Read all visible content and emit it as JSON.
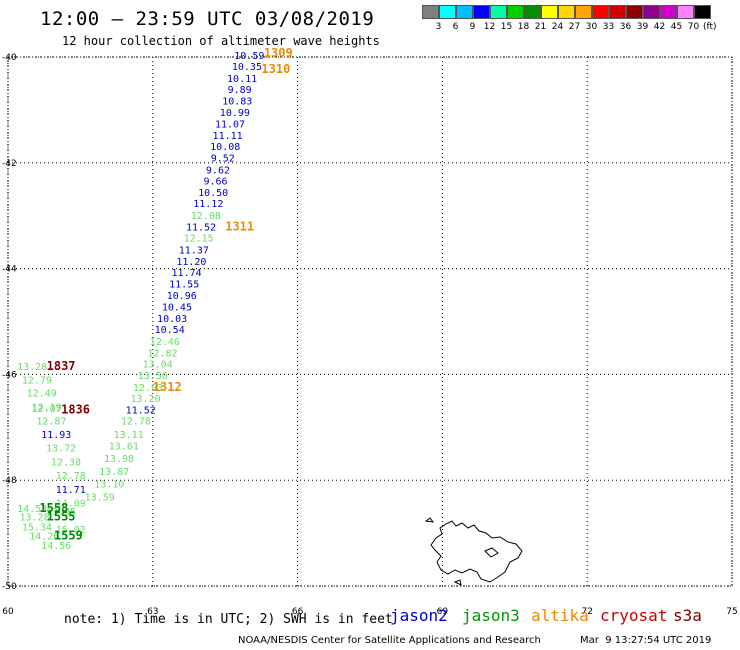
{
  "header": {
    "title": "12:00 — 23:59 UTC 03/08/2019",
    "subtitle": "12 hour collection of altimeter wave heights"
  },
  "legend": {
    "colors": [
      "#808080",
      "#00ffff",
      "#00bfff",
      "#0000ff",
      "#00ffa0",
      "#00d000",
      "#009000",
      "#ffff00",
      "#ffd700",
      "#ffa500",
      "#ff0000",
      "#d00000",
      "#900000",
      "#900090",
      "#d000d0",
      "#ff80ff",
      "#000000"
    ],
    "ticks": [
      "3",
      "6",
      "9",
      "12",
      "15",
      "18",
      "21",
      "24",
      "27",
      "30",
      "33",
      "36",
      "39",
      "42",
      "45",
      "70"
    ],
    "unit": "(ft)"
  },
  "map": {
    "lat_labels": [
      "-40",
      "-42",
      "-44",
      "-46",
      "-48",
      "-50"
    ],
    "lon_labels": [
      "60",
      "63",
      "66",
      "69",
      "72",
      "75"
    ],
    "lat_range": [
      -50,
      -40
    ],
    "lon_range": [
      60,
      75
    ],
    "grid": "dotted"
  },
  "observations": [
    {
      "text": "10.59",
      "lon": 65.0,
      "lat": -40.04,
      "color": "#0000cc"
    },
    {
      "text": "10.35",
      "lon": 64.95,
      "lat": -40.25,
      "color": "#0000cc"
    },
    {
      "text": "10.11",
      "lon": 64.85,
      "lat": -40.47,
      "color": "#0000cc"
    },
    {
      "text": "9.89",
      "lon": 64.8,
      "lat": -40.68,
      "color": "#0000cc"
    },
    {
      "text": "10.83",
      "lon": 64.75,
      "lat": -40.9,
      "color": "#0000cc"
    },
    {
      "text": "10.99",
      "lon": 64.7,
      "lat": -41.12,
      "color": "#0000cc"
    },
    {
      "text": "11.07",
      "lon": 64.6,
      "lat": -41.33,
      "color": "#0000cc"
    },
    {
      "text": "11.11",
      "lon": 64.55,
      "lat": -41.55,
      "color": "#0000cc"
    },
    {
      "text": "10.08",
      "lon": 64.5,
      "lat": -41.76,
      "color": "#0000cc"
    },
    {
      "text": "9.52",
      "lon": 64.45,
      "lat": -41.98,
      "color": "#0000cc"
    },
    {
      "text": "9.62",
      "lon": 64.35,
      "lat": -42.2,
      "color": "#0000cc"
    },
    {
      "text": "9.66",
      "lon": 64.3,
      "lat": -42.41,
      "color": "#0000cc"
    },
    {
      "text": "10.50",
      "lon": 64.25,
      "lat": -42.63,
      "color": "#0000cc"
    },
    {
      "text": "11.12",
      "lon": 64.15,
      "lat": -42.84,
      "color": "#0000cc"
    },
    {
      "text": "12.08",
      "lon": 64.1,
      "lat": -43.06,
      "color": "#66dd66"
    },
    {
      "text": "11.52",
      "lon": 64.0,
      "lat": -43.28,
      "color": "#0000cc"
    },
    {
      "text": "12.15",
      "lon": 63.95,
      "lat": -43.49,
      "color": "#66dd66"
    },
    {
      "text": "11.37",
      "lon": 63.85,
      "lat": -43.71,
      "color": "#0000cc"
    },
    {
      "text": "11.20",
      "lon": 63.8,
      "lat": -43.93,
      "color": "#0000cc"
    },
    {
      "text": "11.74",
      "lon": 63.7,
      "lat": -44.14,
      "color": "#0000cc"
    },
    {
      "text": "11.55",
      "lon": 63.65,
      "lat": -44.36,
      "color": "#0000cc"
    },
    {
      "text": "10.96",
      "lon": 63.6,
      "lat": -44.57,
      "color": "#0000cc"
    },
    {
      "text": "10.45",
      "lon": 63.5,
      "lat": -44.79,
      "color": "#0000cc"
    },
    {
      "text": "10.03",
      "lon": 63.4,
      "lat": -45.01,
      "color": "#0000cc"
    },
    {
      "text": "10.54",
      "lon": 63.35,
      "lat": -45.22,
      "color": "#0000cc"
    },
    {
      "text": "12.46",
      "lon": 63.25,
      "lat": -45.44,
      "color": "#66dd66"
    },
    {
      "text": "12.82",
      "lon": 63.2,
      "lat": -45.66,
      "color": "#66dd66"
    },
    {
      "text": "13.04",
      "lon": 63.1,
      "lat": -45.87,
      "color": "#66dd66"
    },
    {
      "text": "13.50",
      "lon": 63.0,
      "lat": -46.09,
      "color": "#66dd66"
    },
    {
      "text": "12.93",
      "lon": 62.9,
      "lat": -46.31,
      "color": "#66dd66"
    },
    {
      "text": "13.20",
      "lon": 62.85,
      "lat": -46.52,
      "color": "#66dd66"
    },
    {
      "text": "11.52",
      "lon": 62.75,
      "lat": -46.74,
      "color": "#0000cc"
    },
    {
      "text": "12.78",
      "lon": 62.65,
      "lat": -46.95,
      "color": "#66dd66"
    },
    {
      "text": "13.11",
      "lon": 62.5,
      "lat": -47.2,
      "color": "#66dd66"
    },
    {
      "text": "13.61",
      "lon": 62.4,
      "lat": -47.42,
      "color": "#66dd66"
    },
    {
      "text": "13.98",
      "lon": 62.3,
      "lat": -47.66,
      "color": "#66dd66"
    },
    {
      "text": "13.87",
      "lon": 62.2,
      "lat": -47.9,
      "color": "#66dd66"
    },
    {
      "text": "13.10",
      "lon": 62.1,
      "lat": -48.14,
      "color": "#66dd66"
    },
    {
      "text": "13.59",
      "lon": 61.9,
      "lat": -48.38,
      "color": "#66dd66"
    },
    {
      "text": "13.28",
      "lon": 60.5,
      "lat": -45.92,
      "color": "#66dd66"
    },
    {
      "text": "12.79",
      "lon": 60.6,
      "lat": -46.17,
      "color": "#66dd66"
    },
    {
      "text": "12.49",
      "lon": 60.7,
      "lat": -46.42,
      "color": "#66dd66"
    },
    {
      "text": "12.19",
      "lon": 60.8,
      "lat": -46.68,
      "color": "#66dd66"
    },
    {
      "text": "12.07",
      "lon": 60.8,
      "lat": -46.71,
      "color": "#66dd66"
    },
    {
      "text": "12.87",
      "lon": 60.9,
      "lat": -46.95,
      "color": "#66dd66"
    },
    {
      "text": "11.93",
      "lon": 61.0,
      "lat": -47.2,
      "color": "#0000cc"
    },
    {
      "text": "13.72",
      "lon": 61.1,
      "lat": -47.46,
      "color": "#66dd66"
    },
    {
      "text": "12.38",
      "lon": 61.2,
      "lat": -47.72,
      "color": "#66dd66"
    },
    {
      "text": "12.78",
      "lon": 61.3,
      "lat": -47.98,
      "color": "#66dd66"
    },
    {
      "text": "11.71",
      "lon": 61.3,
      "lat": -48.24,
      "color": "#0000cc"
    },
    {
      "text": "14.53",
      "lon": 60.5,
      "lat": -48.6,
      "color": "#66dd66"
    },
    {
      "text": "13.28",
      "lon": 60.55,
      "lat": -48.76,
      "color": "#66dd66"
    },
    {
      "text": "14.09",
      "lon": 61.3,
      "lat": -48.5,
      "color": "#66dd66"
    },
    {
      "text": "13.95",
      "lon": 61.1,
      "lat": -48.66,
      "color": "#66dd66"
    },
    {
      "text": "15.34",
      "lon": 60.6,
      "lat": -48.95,
      "color": "#66dd66"
    },
    {
      "text": "15.02",
      "lon": 61.3,
      "lat": -49.0,
      "color": "#66dd66"
    },
    {
      "text": "14.26",
      "lon": 60.75,
      "lat": -49.12,
      "color": "#66dd66"
    },
    {
      "text": "14.56",
      "lon": 61.0,
      "lat": -49.3,
      "color": "#66dd66"
    }
  ],
  "passes": [
    {
      "text": "1309",
      "lon": 65.6,
      "lat": -40.0,
      "color": "#ee8800"
    },
    {
      "text": "1310",
      "lon": 65.55,
      "lat": -40.3,
      "color": "#ee8800"
    },
    {
      "text": "1311",
      "lon": 64.8,
      "lat": -43.28,
      "color": "#ee8800"
    },
    {
      "text": "1312",
      "lon": 63.3,
      "lat": -46.31,
      "color": "#ee8800"
    },
    {
      "text": "1837",
      "lon": 61.1,
      "lat": -45.92,
      "color": "#800000"
    },
    {
      "text": "1836",
      "lon": 61.4,
      "lat": -46.74,
      "color": "#800000"
    },
    {
      "text": "1558",
      "lon": 60.95,
      "lat": -48.6,
      "color": "#008800"
    },
    {
      "text": "1555",
      "lon": 61.1,
      "lat": -48.76,
      "color": "#008800"
    },
    {
      "text": "1559",
      "lon": 61.25,
      "lat": -49.12,
      "color": "#008800"
    }
  ],
  "footer": {
    "note": "note: 1) Time is in UTC; 2) SWH is in feet",
    "satellites": [
      {
        "name": "jason2",
        "color": "#0000cc"
      },
      {
        "name": "jason3",
        "color": "#009900"
      },
      {
        "name": "altika",
        "color": "#ee8800"
      },
      {
        "name": "cryosat",
        "color": "#cc0000"
      },
      {
        "name": "s3a",
        "color": "#800000"
      }
    ],
    "credit": "NOAA/NESDIS Center for Satellite Applications and Research",
    "timestamp": "Mar  9 13:27:54 UTC 2019"
  }
}
